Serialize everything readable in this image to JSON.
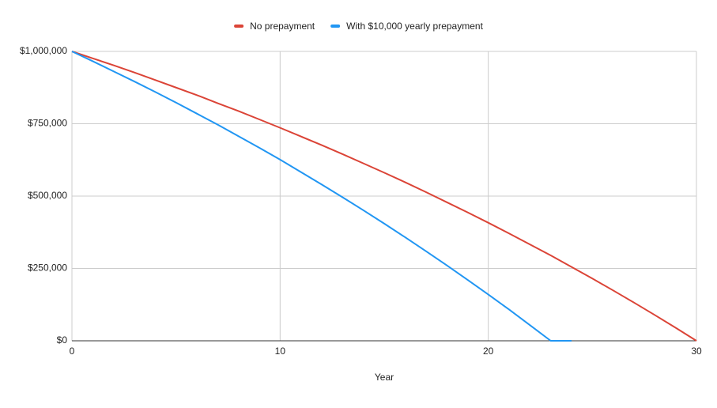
{
  "chart_data": {
    "type": "line",
    "x_label": "Year",
    "x": [
      0,
      1,
      2,
      3,
      4,
      5,
      6,
      7,
      8,
      9,
      10,
      11,
      12,
      13,
      14,
      15,
      16,
      17,
      18,
      19,
      20,
      21,
      22,
      23,
      24,
      25,
      26,
      27,
      28,
      29,
      30
    ],
    "series": [
      {
        "name": "No prepayment",
        "color": "#db4437",
        "values": [
          1000000,
          976000,
          952000,
          927000,
          901000,
          875000,
          849000,
          821000,
          794000,
          765000,
          736000,
          706000,
          676000,
          645000,
          613000,
          581000,
          548000,
          514000,
          479000,
          444000,
          408000,
          371000,
          333000,
          295000,
          255000,
          215000,
          174000,
          132000,
          89000,
          45000,
          0
        ]
      },
      {
        "name": "With $10,000 yearly prepayment",
        "color": "#2196f3",
        "values": [
          1000000,
          966000,
          931000,
          896000,
          860000,
          823000,
          785000,
          747000,
          707000,
          667000,
          626000,
          583000,
          540000,
          496000,
          451000,
          405000,
          358000,
          310000,
          261000,
          211000,
          160000,
          108000,
          54000,
          0,
          0,
          null,
          null,
          null,
          null,
          null,
          null
        ]
      }
    ],
    "xlim": [
      0,
      30
    ],
    "xticks": [
      0,
      10,
      20,
      30
    ],
    "ylim": [
      0,
      1000000
    ],
    "yticks": [
      {
        "value": 0,
        "label": "$0"
      },
      {
        "value": 250000,
        "label": "$250,000"
      },
      {
        "value": 500000,
        "label": "$500,000"
      },
      {
        "value": 750000,
        "label": "$750,000"
      },
      {
        "value": 1000000,
        "label": "$1,000,000"
      }
    ],
    "grid": true,
    "legend": "top"
  }
}
